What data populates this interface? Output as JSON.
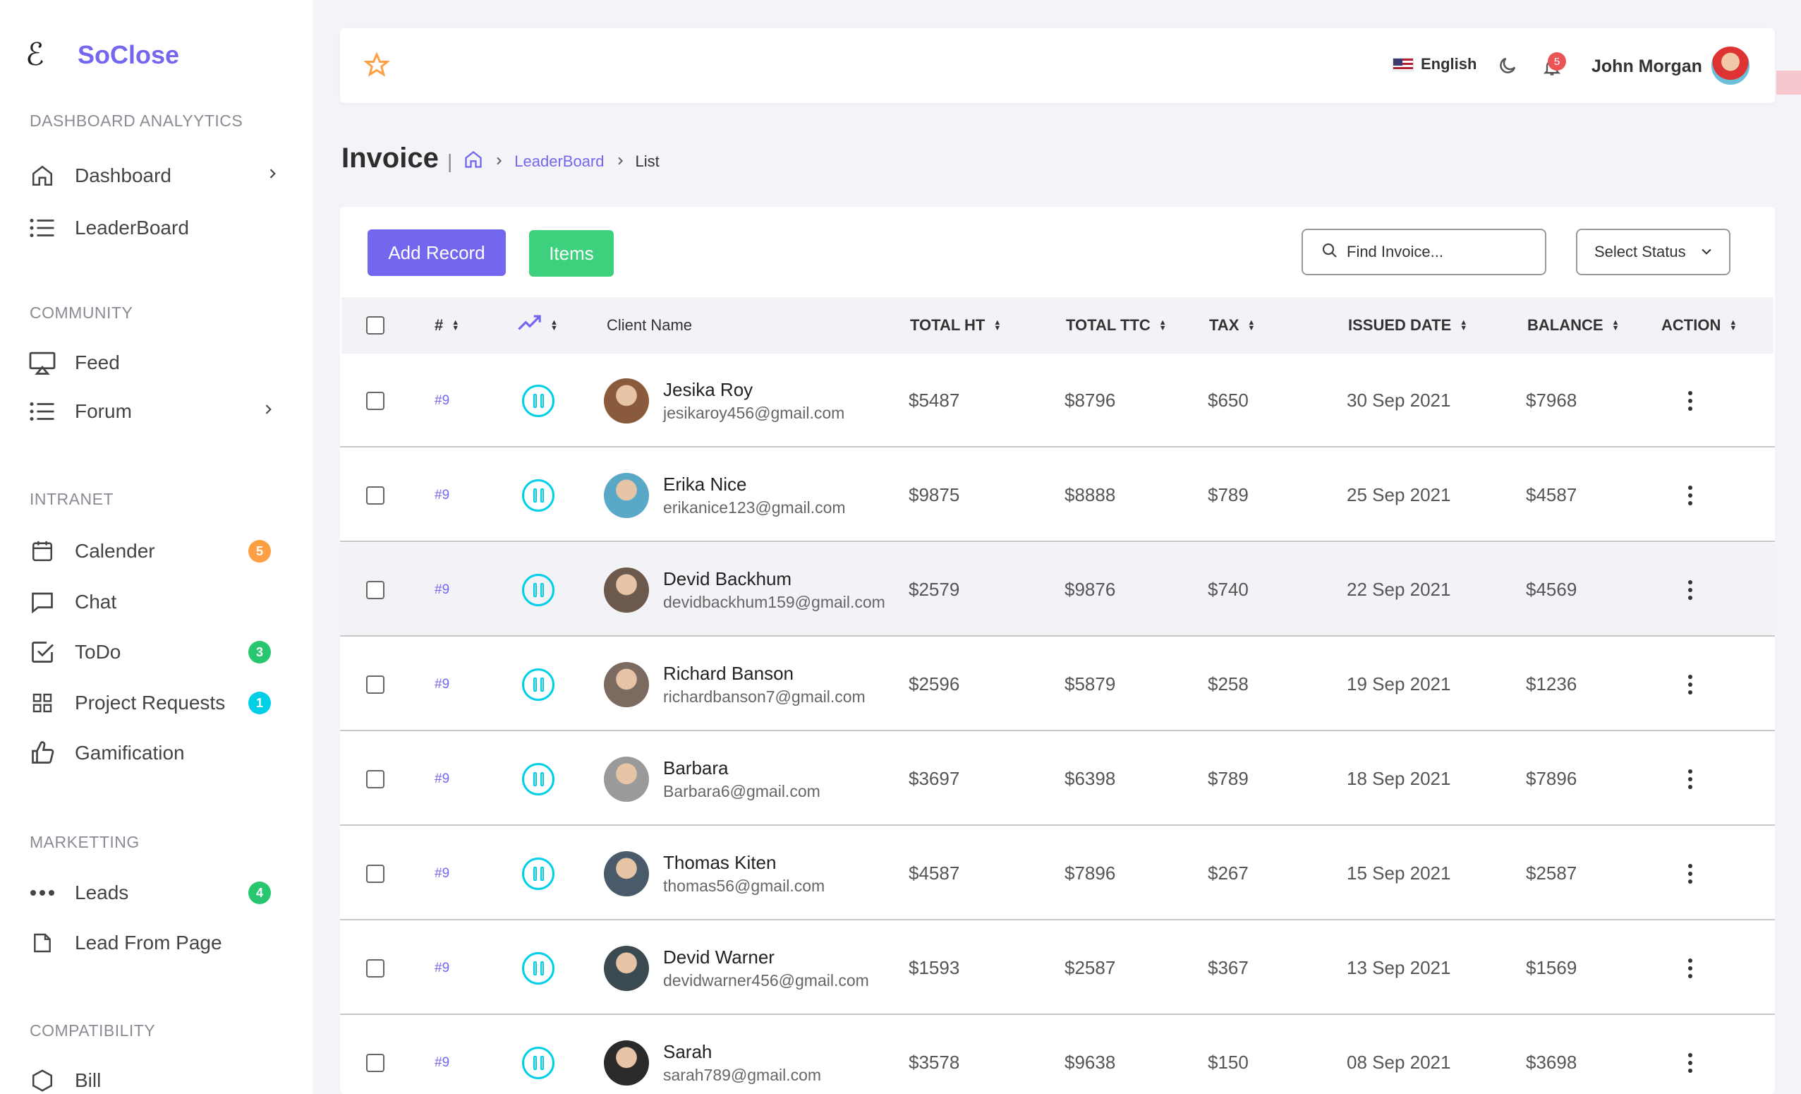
{
  "brand": {
    "logo": "ℰ",
    "name": "SoClose"
  },
  "sidebar": {
    "sections": [
      {
        "title": "DASHBOARD ANALYYTICS"
      },
      {
        "title": "COMMUNITY"
      },
      {
        "title": "INTRANET"
      },
      {
        "title": "MARKETTING"
      },
      {
        "title": "COMPATIBILITY"
      }
    ],
    "items": [
      {
        "label": "Dashboard",
        "icon": "home-icon"
      },
      {
        "label": "LeaderBoard",
        "icon": "list-icon"
      },
      {
        "label": "Feed",
        "icon": "monitor-icon"
      },
      {
        "label": "Forum",
        "icon": "list-icon"
      },
      {
        "label": "Calender",
        "icon": "calendar-icon",
        "badge": "5"
      },
      {
        "label": "Chat",
        "icon": "chat-icon"
      },
      {
        "label": "ToDo",
        "icon": "check-square-icon",
        "badge": "3"
      },
      {
        "label": "Project Requests",
        "icon": "grid-icon",
        "badge": "1"
      },
      {
        "label": "Gamification",
        "icon": "thumbs-up-icon"
      },
      {
        "label": "Leads",
        "icon": "dots-icon",
        "badge": "4"
      },
      {
        "label": "Lead From Page",
        "icon": "file-icon"
      },
      {
        "label": "Bill",
        "icon": "hexagon-icon"
      }
    ],
    "badge_colors": {
      "orange": "#ff9f43",
      "green": "#28c76f",
      "cyan": "#00cfe8"
    }
  },
  "topbar": {
    "language": "English",
    "notification_count": "5",
    "user_name": "John Morgan"
  },
  "page": {
    "title": "Invoice",
    "breadcrumb": {
      "middle": "LeaderBoard",
      "current": "List"
    }
  },
  "toolbar": {
    "add_label": "Add Record",
    "items_label": "Items",
    "search_placeholder": "Find Invoice...",
    "status_label": "Select Status"
  },
  "table": {
    "headers": {
      "id": "#",
      "client": "Client Name",
      "total_ht": "TOTAL HT",
      "total_ttc": "TOTAL TTC",
      "tax": "TAX",
      "issued": "ISSUED DATE",
      "balance": "BALANCE",
      "action": "ACTION"
    },
    "rows": [
      {
        "id": "#9",
        "name": "Jesika Roy",
        "email": "jesikaroy456@gmail.com",
        "ht": "$5487",
        "ttc": "$8796",
        "tax": "$650",
        "date": "30 Sep 2021",
        "balance": "$7968",
        "avatar_color": "#8a5a3c"
      },
      {
        "id": "#9",
        "name": "Erika Nice",
        "email": "erikanice123@gmail.com",
        "ht": "$9875",
        "ttc": "$8888",
        "tax": "$789",
        "date": "25 Sep 2021",
        "balance": "$4587",
        "avatar_color": "#5aa8c8"
      },
      {
        "id": "#9",
        "name": "Devid Backhum",
        "email": "devidbackhum159@gmail.com",
        "ht": "$2579",
        "ttc": "$9876",
        "tax": "$740",
        "date": "22 Sep 2021",
        "balance": "$4569",
        "avatar_color": "#6b5a4c"
      },
      {
        "id": "#9",
        "name": "Richard Banson",
        "email": "richardbanson7@gmail.com",
        "ht": "$2596",
        "ttc": "$5879",
        "tax": "$258",
        "date": "19 Sep 2021",
        "balance": "$1236",
        "avatar_color": "#7a6a60"
      },
      {
        "id": "#9",
        "name": "Barbara",
        "email": "Barbara6@gmail.com",
        "ht": "$3697",
        "ttc": "$6398",
        "tax": "$789",
        "date": "18 Sep 2021",
        "balance": "$7896",
        "avatar_color": "#9a9a9a"
      },
      {
        "id": "#9",
        "name": "Thomas Kiten",
        "email": "thomas56@gmail.com",
        "ht": "$4587",
        "ttc": "$7896",
        "tax": "$267",
        "date": "15 Sep 2021",
        "balance": "$2587",
        "avatar_color": "#4a5a6a"
      },
      {
        "id": "#9",
        "name": "Devid Warner",
        "email": "devidwarner456@gmail.com",
        "ht": "$1593",
        "ttc": "$2587",
        "tax": "$367",
        "date": "13 Sep 2021",
        "balance": "$1569",
        "avatar_color": "#3a4a50"
      },
      {
        "id": "#9",
        "name": "Sarah",
        "email": "sarah789@gmail.com",
        "ht": "$3578",
        "ttc": "$9638",
        "tax": "$150",
        "date": "08 Sep 2021",
        "balance": "$3698",
        "avatar_color": "#2a2a2a"
      }
    ]
  },
  "colors": {
    "accent": "#7367f0",
    "success": "#3dd07d",
    "info": "#00cfe8",
    "danger": "#ea5455"
  }
}
